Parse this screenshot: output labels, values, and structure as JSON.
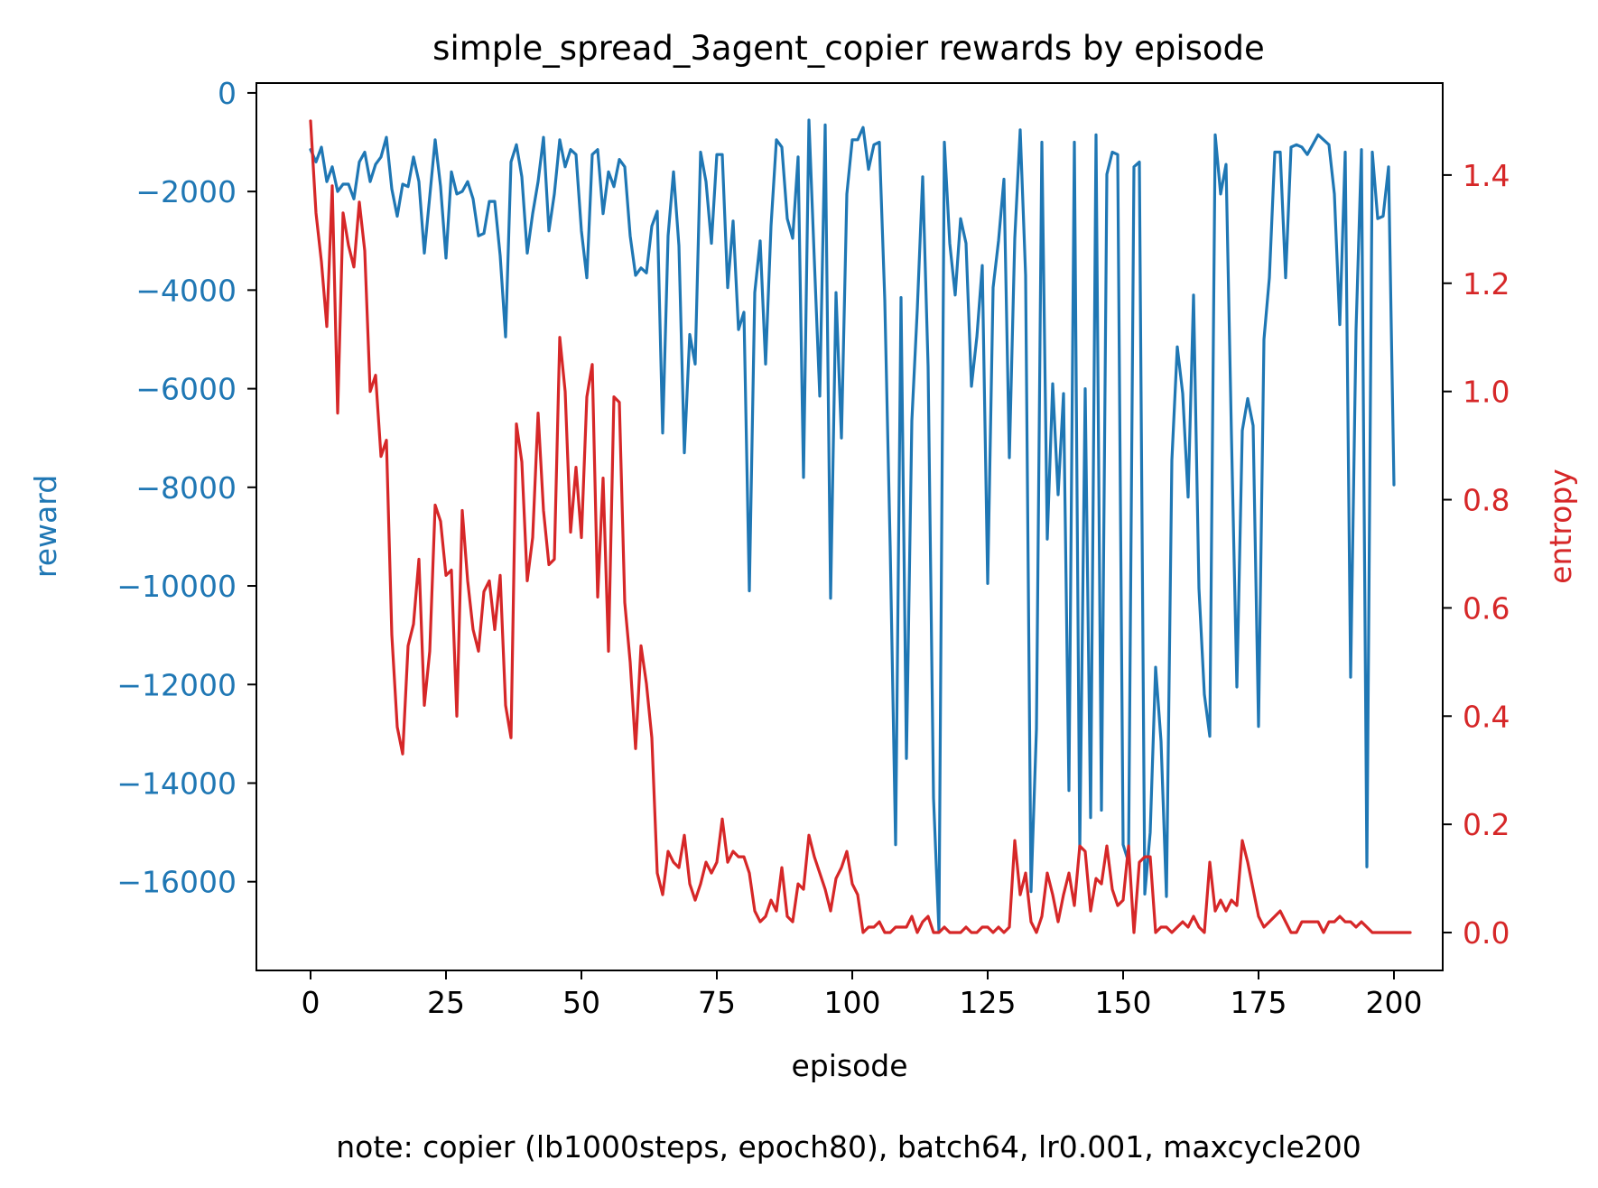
{
  "chart_data": {
    "type": "line",
    "title": "simple_spread_3agent_copier rewards by episode",
    "xlabel": "episode",
    "ylabel": "reward",
    "y2label": "entropy",
    "note": "note: copier (lb1000steps, epoch80), batch64, lr0.001, maxcycle200",
    "xlim": [
      -10,
      209
    ],
    "ylim": [
      -17800,
      200
    ],
    "y2lim": [
      -0.07,
      1.57
    ],
    "xticks": [
      0,
      25,
      50,
      75,
      100,
      125,
      150,
      175,
      200
    ],
    "yticks": [
      0,
      -2000,
      -4000,
      -6000,
      -8000,
      -10000,
      -12000,
      -14000,
      -16000
    ],
    "y2ticks": [
      0.0,
      0.2,
      0.4,
      0.6,
      0.8,
      1.0,
      1.2,
      1.4
    ],
    "grid": false,
    "legend": "none",
    "colors": {
      "reward": "#1f77b4",
      "entropy": "#d62728",
      "axes": "#000000"
    },
    "series": [
      {
        "axis": "left",
        "color": "#1f77b4",
        "values": [
          -1150,
          -1400,
          -1100,
          -1800,
          -1500,
          -2000,
          -1850,
          -1850,
          -2150,
          -1400,
          -1200,
          -1800,
          -1450,
          -1300,
          -900,
          -1950,
          -2500,
          -1850,
          -1900,
          -1300,
          -1800,
          -3250,
          -2100,
          -950,
          -1900,
          -3350,
          -1600,
          -2050,
          -2000,
          -1800,
          -2150,
          -2900,
          -2850,
          -2200,
          -2200,
          -3300,
          -4950,
          -1400,
          -1050,
          -1700,
          -3250,
          -2450,
          -1800,
          -900,
          -2800,
          -2050,
          -950,
          -1500,
          -1150,
          -1250,
          -2800,
          -3750,
          -1250,
          -1150,
          -2450,
          -1600,
          -1900,
          -1350,
          -1500,
          -2900,
          -3700,
          -3550,
          -3650,
          -2700,
          -2400,
          -6900,
          -2900,
          -1600,
          -3100,
          -7300,
          -4900,
          -5500,
          -1200,
          -1800,
          -3050,
          -1250,
          -1250,
          -3950,
          -2600,
          -4800,
          -4450,
          -10100,
          -4050,
          -3000,
          -5500,
          -2700,
          -950,
          -1100,
          -2550,
          -2950,
          -1300,
          -7800,
          -550,
          -3400,
          -6150,
          -650,
          -10250,
          -4050,
          -7000,
          -2050,
          -950,
          -950,
          -700,
          -1550,
          -1050,
          -1000,
          -4200,
          -9200,
          -15250,
          -4150,
          -13500,
          -6650,
          -4400,
          -1700,
          -5550,
          -14300,
          -17000,
          -1000,
          -3050,
          -4100,
          -2550,
          -3050,
          -5950,
          -4950,
          -3500,
          -9950,
          -3950,
          -3000,
          -1750,
          -7400,
          -2950,
          -750,
          -3700,
          -16200,
          -12900,
          -1000,
          -9050,
          -5900,
          -8150,
          -6100,
          -14150,
          -1000,
          -15350,
          -6000,
          -14700,
          -850,
          -14550,
          -1650,
          -1200,
          -1250,
          -15250,
          -15600,
          -1500,
          -1400,
          -16250,
          -15000,
          -11650,
          -13150,
          -16300,
          -7450,
          -5150,
          -6100,
          -8200,
          -4100,
          -10050,
          -12200,
          -13050,
          -850,
          -2050,
          -1450,
          -6950,
          -12050,
          -6850,
          -6200,
          -6750,
          -12850,
          -5000,
          -3750,
          -1200,
          -1200,
          -3750,
          -1100,
          -1050,
          -1100,
          -1250,
          -1050,
          -850,
          -950,
          -1050,
          -2050,
          -4700,
          -1200,
          -11850,
          -4800,
          -1150,
          -15700,
          -1200,
          -2550,
          -2500,
          -1500,
          -7950
        ]
      },
      {
        "axis": "right",
        "color": "#d62728",
        "values": [
          1.5,
          1.33,
          1.24,
          1.12,
          1.38,
          0.96,
          1.33,
          1.27,
          1.23,
          1.35,
          1.26,
          1.0,
          1.03,
          0.88,
          0.91,
          0.55,
          0.38,
          0.33,
          0.53,
          0.57,
          0.69,
          0.42,
          0.52,
          0.79,
          0.76,
          0.66,
          0.67,
          0.4,
          0.78,
          0.65,
          0.56,
          0.52,
          0.63,
          0.65,
          0.56,
          0.66,
          0.42,
          0.36,
          0.94,
          0.87,
          0.65,
          0.73,
          0.96,
          0.78,
          0.68,
          0.69,
          1.1,
          1.0,
          0.74,
          0.86,
          0.73,
          0.99,
          1.05,
          0.62,
          0.84,
          0.52,
          0.99,
          0.98,
          0.61,
          0.5,
          0.34,
          0.53,
          0.46,
          0.36,
          0.11,
          0.07,
          0.15,
          0.13,
          0.12,
          0.18,
          0.09,
          0.06,
          0.09,
          0.13,
          0.11,
          0.13,
          0.21,
          0.13,
          0.15,
          0.14,
          0.14,
          0.11,
          0.04,
          0.02,
          0.03,
          0.06,
          0.04,
          0.12,
          0.03,
          0.02,
          0.09,
          0.08,
          0.18,
          0.14,
          0.11,
          0.08,
          0.04,
          0.1,
          0.12,
          0.15,
          0.09,
          0.07,
          0.0,
          0.01,
          0.01,
          0.02,
          0.0,
          0.0,
          0.01,
          0.01,
          0.01,
          0.03,
          0.0,
          0.02,
          0.03,
          0.0,
          0.0,
          0.01,
          0.0,
          0.0,
          0.0,
          0.01,
          0.0,
          0.0,
          0.01,
          0.01,
          0.0,
          0.01,
          0.0,
          0.01,
          0.17,
          0.07,
          0.11,
          0.02,
          0.0,
          0.03,
          0.11,
          0.07,
          0.02,
          0.07,
          0.11,
          0.05,
          0.16,
          0.15,
          0.04,
          0.1,
          0.09,
          0.16,
          0.08,
          0.05,
          0.06,
          0.16,
          0.0,
          0.13,
          0.14,
          0.14,
          0.0,
          0.01,
          0.01,
          0.0,
          0.01,
          0.02,
          0.01,
          0.03,
          0.01,
          0.0,
          0.13,
          0.04,
          0.06,
          0.04,
          0.06,
          0.05,
          0.17,
          0.13,
          0.08,
          0.03,
          0.01,
          0.02,
          0.03,
          0.04,
          0.02,
          0.0,
          0.0,
          0.02,
          0.02,
          0.02,
          0.02,
          0.0,
          0.02,
          0.02,
          0.03,
          0.02,
          0.02,
          0.01,
          0.02,
          0.01,
          0.0,
          0.0,
          0.0,
          0.0,
          0.0,
          0.0,
          0.0,
          0.0
        ]
      }
    ]
  }
}
